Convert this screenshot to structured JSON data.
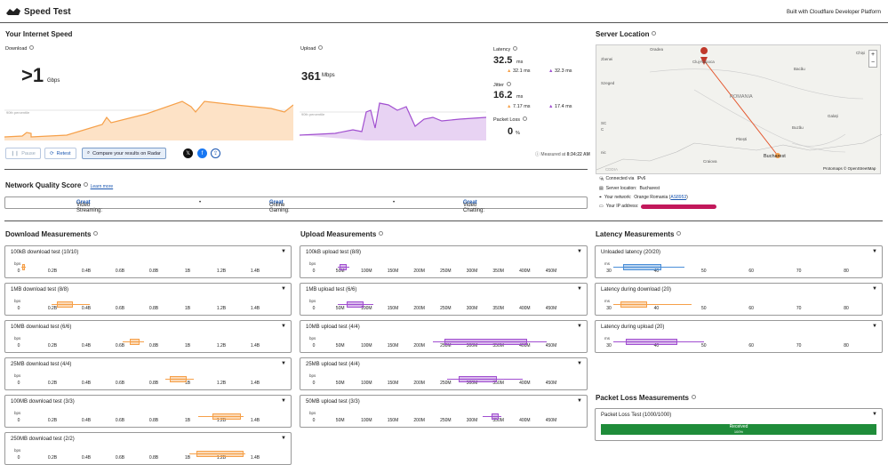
{
  "app": {
    "title": "Speed Test",
    "built_with": "Built with Cloudflare Developer Platform"
  },
  "speed": {
    "heading": "Your Internet Speed",
    "download": {
      "label": "Download",
      "value": ">1",
      "unit": "Gbps",
      "percentile": "90th percentile"
    },
    "upload": {
      "label": "Upload",
      "value": "361",
      "unit": "Mbps",
      "percentile": "90th percentile"
    },
    "latency": {
      "label": "Latency",
      "value": "32.5",
      "unit": "ms",
      "down": "32.1 ms",
      "up": "32.3 ms"
    },
    "jitter": {
      "label": "Jitter",
      "value": "16.2",
      "unit": "ms",
      "down": "7.17 ms",
      "up": "17.4 ms"
    },
    "packet_loss": {
      "label": "Packet Loss",
      "value": "0",
      "unit": "%"
    },
    "measured": "Measured at",
    "measured_time": "8:34:22 AM",
    "buttons": {
      "pause": "Pause",
      "retest": "Retest",
      "compare": "Compare your results on Radar"
    }
  },
  "server": {
    "heading": "Server Location",
    "connected_via": "Connected via",
    "ip_version": "IPv6",
    "server_location_label": "Server location:",
    "server_location": "Bucharest",
    "network_label": "Your network:",
    "network": "Orange Romania (",
    "asn": "AS8953",
    "network_end": ")",
    "ip_label": "Your IP address:",
    "attribution": "Protomaps © OpenStreetMap",
    "map_labels": {
      "oradea": "Oradea",
      "cluj": "Cluj-Napoca",
      "szeged": "Szeged",
      "romania": "ROMANIA",
      "bacau": "Bacău",
      "galati": "Galați",
      "buzau": "Buzău",
      "pitesti": "Pitești",
      "craiova": "Craiova",
      "bucharest": "Bucharest",
      "chisinau": "Chiși",
      "pancevo": "zbenei",
      "sc1": "SC",
      "sc2": "C",
      "nic": "nic",
      "srbija": "CDDIA",
      "ntk": "N"
    }
  },
  "nq": {
    "heading": "Network Quality Score",
    "learn": "Learn more",
    "items": [
      {
        "label": "Video Streaming:",
        "value": "Great"
      },
      {
        "label": "Online Gaming:",
        "value": "Great"
      },
      {
        "label": "Video Chatting:",
        "value": "Great"
      }
    ]
  },
  "download": {
    "heading": "Download Measurements",
    "tests": [
      "100kB download test (10/10)",
      "1MB download test (8/8)",
      "10MB download test (6/6)",
      "25MB download test (4/4)",
      "100MB download test (3/3)",
      "250MB download test (2/2)"
    ],
    "ticks": [
      "0",
      "0.2B",
      "0.4B",
      "0.6B",
      "0.8B",
      "1B",
      "1.2B",
      "1.4B"
    ],
    "unit": "bps"
  },
  "upload": {
    "heading": "Upload Measurements",
    "tests": [
      "100kB upload test (8/8)",
      "1MB upload test (6/6)",
      "10MB upload test (4/4)",
      "25MB upload test (4/4)",
      "50MB upload test (3/3)"
    ],
    "ticks": [
      "0",
      "50M",
      "100M",
      "150M",
      "200M",
      "250M",
      "300M",
      "350M",
      "400M",
      "450M"
    ],
    "unit": "bps"
  },
  "latency": {
    "heading": "Latency Measurements",
    "tests": [
      "Unloaded latency (20/20)",
      "Latency during download (20)",
      "Latency during upload (20)"
    ],
    "ticks": [
      "30",
      "40",
      "50",
      "60",
      "70",
      "80"
    ],
    "unit": "ms"
  },
  "packet": {
    "heading": "Packet Loss Measurements",
    "test": "Packet Loss Test (1000/1000)",
    "received": "Received",
    "pct": "100%"
  },
  "colors": {
    "orange": "#f6a049",
    "purple": "#a14fd0",
    "blue": "#4a8ed8",
    "green": "#1f8c3a",
    "link": "#1a56b0"
  }
}
